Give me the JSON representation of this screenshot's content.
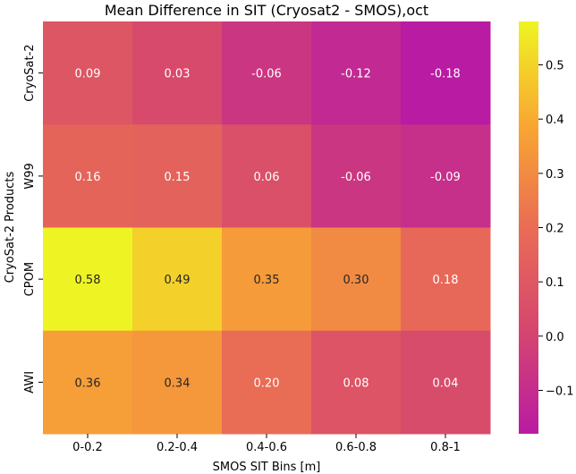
{
  "chart_data": {
    "type": "heatmap",
    "title": "Mean Difference in SIT (Cryosat2 - SMOS),oct",
    "xlabel": "SMOS SIT Bins [m]",
    "ylabel": "CryoSat-2 Products",
    "x_categories": [
      "0-0.2",
      "0.2-0.4",
      "0.4-0.6",
      "0.6-0.8",
      "0.8-1"
    ],
    "y_categories": [
      "CryoSat-2",
      "W99",
      "CPOM",
      "AWI"
    ],
    "values": [
      [
        0.09,
        0.03,
        -0.06,
        -0.12,
        -0.18
      ],
      [
        0.16,
        0.15,
        0.06,
        -0.06,
        -0.09
      ],
      [
        0.58,
        0.49,
        0.35,
        0.3,
        0.18
      ],
      [
        0.36,
        0.34,
        0.2,
        0.08,
        0.04
      ]
    ],
    "cell_labels": [
      [
        "0.09",
        "0.03",
        "-0.06",
        "-0.12",
        "-0.18"
      ],
      [
        "0.16",
        "0.15",
        "0.06",
        "-0.06",
        "-0.09"
      ],
      [
        "0.58",
        "0.49",
        "0.35",
        "0.30",
        "0.18"
      ],
      [
        "0.36",
        "0.34",
        "0.20",
        "0.08",
        "0.04"
      ]
    ],
    "colormap": "plasma",
    "colorbar": {
      "range": [
        -0.18,
        0.58
      ],
      "ticks": [
        -0.1,
        0.0,
        0.1,
        0.2,
        0.3,
        0.4,
        0.5
      ],
      "tick_labels": [
        "−0.1",
        "0.0",
        "0.1",
        "0.2",
        "0.3",
        "0.4",
        "0.5"
      ]
    }
  }
}
